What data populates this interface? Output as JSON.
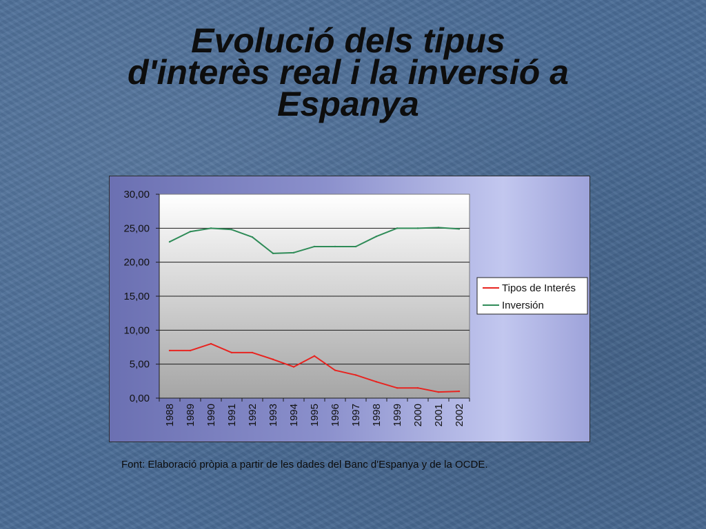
{
  "slide": {
    "title_lines": [
      "Evolució dels tipus",
      "d'interès real i la inversió a",
      "Espanya"
    ],
    "source": "Font: Elaboració pròpia a partir de les dades del Banc d'Espanya y de la OCDE."
  },
  "chart_data": {
    "type": "line",
    "title": "",
    "xlabel": "",
    "ylabel": "",
    "categories": [
      "1988",
      "1989",
      "1990",
      "1991",
      "1992",
      "1993",
      "1994",
      "1995",
      "1996",
      "1997",
      "1998",
      "1999",
      "2000",
      "2001",
      "2002"
    ],
    "ylim": [
      0,
      30
    ],
    "yticks": [
      0,
      5,
      10,
      15,
      20,
      25,
      30
    ],
    "ytick_labels": [
      "0,00",
      "5,00",
      "10,00",
      "15,00",
      "20,00",
      "25,00",
      "30,00"
    ],
    "grid": true,
    "legend_position": "right",
    "series": [
      {
        "name": "Tipos de Interés",
        "color": "#e8231f",
        "values": [
          7.0,
          7.0,
          8.0,
          6.7,
          6.7,
          5.7,
          4.6,
          6.2,
          4.1,
          3.4,
          2.4,
          1.5,
          1.5,
          0.9,
          1.0
        ]
      },
      {
        "name": "Inversión",
        "color": "#2e8b57",
        "values": [
          23.0,
          24.5,
          25.0,
          24.8,
          23.7,
          21.3,
          21.4,
          22.3,
          22.3,
          22.3,
          23.8,
          25.0,
          25.0,
          25.1,
          24.9
        ]
      }
    ]
  }
}
